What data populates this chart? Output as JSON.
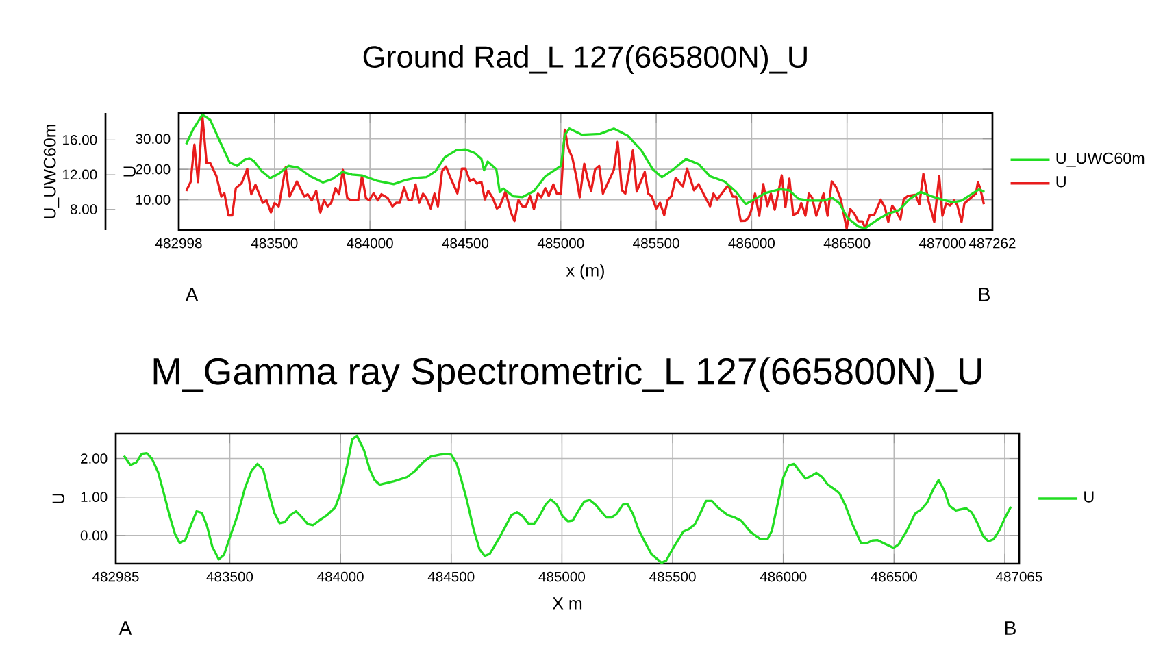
{
  "chart_data": [
    {
      "type": "line",
      "title": "Ground Rad_L 127(665800N)_U",
      "xlabel": "x (m)",
      "ylabel": "U",
      "y2label": "U_UWC60m",
      "xlim": [
        482998,
        487262
      ],
      "xticks": [
        482998,
        483500,
        484000,
        484500,
        485000,
        485500,
        486000,
        486500,
        487000,
        487262
      ],
      "ylim": [
        0,
        38.5
      ],
      "yticks": [
        {
          "value": 10,
          "label": "10.00"
        },
        {
          "value": 20,
          "label": "20.00"
        },
        {
          "value": 30,
          "label": "30.00"
        }
      ],
      "y2lim": [
        5.6,
        19.1
      ],
      "y2ticks": [
        {
          "value": 8,
          "label": "8.00"
        },
        {
          "value": 12,
          "label": "12.00"
        },
        {
          "value": 16,
          "label": "16.00"
        }
      ],
      "grid": true,
      "legend": "right",
      "annotations": [
        "A",
        "B"
      ],
      "series": [
        {
          "name": "U_UWC60m",
          "color": "#22dd22",
          "axis": "y2",
          "x": [
            483037,
            483073,
            483122,
            483163,
            483214,
            483265,
            483304,
            483342,
            483368,
            483394,
            483432,
            483477,
            483522,
            483573,
            483624,
            483688,
            483753,
            483804,
            483855,
            483906,
            483958,
            484035,
            484124,
            484190,
            484237,
            484296,
            484344,
            484392,
            484452,
            484500,
            484548,
            484584,
            484598,
            484617,
            484662,
            484680,
            484698,
            484751,
            484799,
            484859,
            484919,
            484973,
            485001,
            485021,
            485045,
            485111,
            485207,
            485278,
            485350,
            485422,
            485482,
            485530,
            485590,
            485656,
            485722,
            485782,
            485858,
            485919,
            485969,
            486018,
            486075,
            486147,
            486196,
            486246,
            486303,
            486374,
            486424,
            486460,
            486503,
            486559,
            486595,
            486659,
            486716,
            486772,
            486829,
            486886,
            486943,
            487000,
            487057,
            487100,
            487142,
            487192,
            487220
          ],
          "values": [
            15.5,
            17.2,
            18.9,
            18.3,
            15.8,
            13.4,
            13.0,
            13.7,
            13.9,
            13.5,
            12.4,
            11.6,
            12.1,
            13.0,
            12.8,
            11.8,
            11.1,
            11.5,
            12.3,
            12.0,
            11.9,
            11.3,
            10.9,
            11.4,
            11.6,
            11.7,
            12.4,
            14.0,
            14.8,
            14.9,
            14.5,
            13.8,
            12.5,
            13.5,
            12.6,
            10.0,
            10.4,
            9.5,
            9.4,
            10.1,
            11.8,
            12.6,
            13.0,
            16.6,
            17.3,
            16.6,
            16.7,
            17.3,
            16.5,
            14.8,
            12.6,
            11.7,
            12.6,
            13.8,
            13.2,
            11.8,
            11.2,
            10.0,
            8.6,
            9.2,
            9.9,
            10.3,
            10.2,
            9.2,
            9.0,
            9.0,
            9.3,
            8.7,
            7.0,
            6.0,
            5.8,
            6.8,
            7.5,
            7.9,
            9.2,
            10.0,
            9.5,
            9.1,
            8.8,
            9.0,
            9.6,
            10.3,
            10.0
          ]
        },
        {
          "name": "U",
          "color": "#e81c1c",
          "x": [
            483037,
            483060,
            483080,
            483099,
            483122,
            483144,
            483163,
            483195,
            483221,
            483237,
            483259,
            483278,
            483297,
            483327,
            483357,
            483378,
            483400,
            483438,
            483458,
            483481,
            483500,
            483522,
            483558,
            483579,
            483617,
            483656,
            483673,
            483695,
            483718,
            483740,
            483759,
            483778,
            483797,
            483819,
            483838,
            483858,
            483881,
            483900,
            483938,
            483958,
            483979,
            483996,
            484019,
            484041,
            484060,
            484092,
            484118,
            484137,
            484156,
            484179,
            484201,
            484219,
            484239,
            484258,
            484278,
            484296,
            484318,
            484338,
            484356,
            484378,
            484398,
            484422,
            484458,
            484482,
            484500,
            484524,
            484542,
            484560,
            484584,
            484602,
            484620,
            484644,
            484665,
            484680,
            484710,
            484740,
            484757,
            484778,
            484799,
            484817,
            484839,
            484859,
            484880,
            484898,
            484919,
            484937,
            484961,
            484979,
            485001,
            485021,
            485039,
            485060,
            485081,
            485099,
            485123,
            485141,
            485159,
            485180,
            485201,
            485221,
            485278,
            485298,
            485320,
            485338,
            485378,
            485398,
            485440,
            485458,
            485476,
            485500,
            485520,
            485542,
            485560,
            485580,
            485602,
            485626,
            485640,
            485662,
            485698,
            485722,
            485782,
            485800,
            485820,
            485877,
            485901,
            485919,
            485943,
            485967,
            485983,
            485997,
            486018,
            486040,
            486061,
            486083,
            486101,
            486121,
            486158,
            486177,
            486198,
            486218,
            486243,
            486260,
            486282,
            486300,
            486317,
            486339,
            486377,
            486398,
            486420,
            486442,
            486467,
            486498,
            486516,
            486538,
            486559,
            486580,
            486595,
            486619,
            486642,
            486676,
            486698,
            486716,
            486737,
            486755,
            486780,
            486797,
            486818,
            486858,
            486879,
            486900,
            486926,
            486957,
            486983,
            487000,
            487019,
            487040,
            487061,
            487078,
            487100,
            487115,
            487175,
            487186,
            487199,
            487217
          ],
          "values": [
            12.9,
            15.8,
            28.1,
            15.8,
            37.4,
            22.0,
            22.0,
            17.8,
            11.0,
            12.1,
            4.8,
            4.8,
            13.8,
            15.4,
            20.1,
            11.8,
            14.9,
            9.0,
            9.8,
            5.8,
            8.9,
            7.8,
            20.6,
            11.0,
            16.0,
            11.0,
            11.8,
            9.8,
            12.9,
            5.8,
            9.8,
            7.8,
            9.0,
            13.8,
            11.8,
            19.8,
            10.6,
            9.8,
            9.8,
            17.8,
            10.5,
            9.8,
            12.1,
            9.8,
            11.8,
            10.6,
            7.8,
            9.0,
            9.0,
            14.0,
            9.9,
            9.9,
            15.0,
            9.0,
            12.0,
            10.5,
            7.1,
            12.0,
            7.8,
            19.4,
            20.9,
            17.2,
            12.1,
            20.2,
            20.2,
            16.1,
            16.8,
            15.3,
            15.8,
            10.1,
            12.9,
            10.5,
            7.1,
            7.8,
            12.7,
            5.6,
            3.0,
            9.9,
            7.8,
            7.8,
            11.2,
            6.9,
            12.0,
            10.8,
            13.8,
            11.2,
            15.0,
            12.0,
            12.0,
            33.0,
            26.9,
            23.9,
            17.6,
            10.8,
            21.8,
            16.8,
            12.9,
            20.0,
            21.1,
            12.0,
            19.8,
            29.0,
            13.1,
            12.0,
            26.2,
            12.7,
            19.1,
            12.0,
            11.1,
            7.1,
            9.0,
            4.9,
            9.9,
            11.2,
            17.2,
            15.3,
            14.4,
            20.2,
            13.1,
            15.1,
            7.8,
            12.0,
            10.1,
            14.8,
            11.0,
            11.0,
            3.0,
            3.1,
            4.0,
            6.3,
            12.0,
            4.7,
            15.1,
            7.9,
            12.0,
            6.7,
            18.0,
            7.6,
            16.9,
            4.9,
            5.8,
            8.9,
            4.7,
            12.0,
            10.7,
            4.7,
            12.0,
            4.7,
            16.0,
            14.2,
            10.2,
            0.5,
            7.0,
            5.4,
            2.9,
            2.9,
            0.7,
            4.9,
            4.9,
            10.0,
            7.6,
            2.7,
            8.0,
            6.4,
            3.6,
            10.2,
            11.2,
            11.6,
            8.5,
            18.5,
            9.8,
            2.7,
            17.8,
            4.7,
            8.8,
            8.1,
            9.8,
            8.2,
            2.7,
            8.8,
            12.0,
            15.8,
            13.5,
            8.5
          ]
        }
      ]
    },
    {
      "type": "line",
      "title": "M_Gamma ray Spectrometric_L 127(665800N)_U",
      "xlabel": "X m",
      "ylabel": "U",
      "xlim": [
        482985,
        487065
      ],
      "xticks": [
        482985,
        483500,
        484000,
        484500,
        485000,
        485500,
        486000,
        486500,
        {
          "value": 487000,
          "label": null
        },
        487065
      ],
      "ylim": [
        -0.73,
        2.65
      ],
      "yticks": [
        {
          "value": 0,
          "label": "0.00"
        },
        {
          "value": 1,
          "label": "1.00"
        },
        {
          "value": 2,
          "label": "2.00"
        }
      ],
      "grid": true,
      "legend": "right",
      "annotations": [
        "A",
        "B"
      ],
      "series": [
        {
          "name": "U",
          "color": "#22dd22",
          "x": [
            483022,
            483051,
            483078,
            483102,
            483125,
            483149,
            483176,
            483202,
            483226,
            483252,
            483273,
            483299,
            483326,
            483350,
            483374,
            483397,
            483421,
            483450,
            483474,
            483500,
            483533,
            483569,
            483598,
            483625,
            483651,
            483677,
            483701,
            483725,
            483748,
            483775,
            483799,
            483823,
            483852,
            483876,
            483911,
            483941,
            483976,
            484000,
            484030,
            484053,
            484074,
            484106,
            484130,
            484154,
            484177,
            484242,
            484301,
            484337,
            484378,
            484408,
            484449,
            484479,
            484500,
            484525,
            484546,
            484571,
            484602,
            484628,
            484651,
            484674,
            484720,
            484772,
            484797,
            484823,
            484849,
            484875,
            484895,
            484926,
            484949,
            484977,
            485003,
            485027,
            485049,
            485075,
            485101,
            485126,
            485152,
            485178,
            485201,
            485224,
            485247,
            485275,
            485296,
            485321,
            485347,
            485373,
            485404,
            485450,
            485471,
            485502,
            485548,
            485574,
            485600,
            485626,
            485651,
            485677,
            485708,
            485749,
            485780,
            485811,
            485852,
            485893,
            485929,
            485948,
            485969,
            486000,
            486024,
            486048,
            486100,
            486124,
            486149,
            486175,
            486201,
            486227,
            486253,
            486279,
            486314,
            486351,
            486376,
            486402,
            486426,
            486454,
            486498,
            486521,
            486557,
            486595,
            486624,
            486650,
            486676,
            486701,
            486727,
            486750,
            486779,
            486825,
            486851,
            486876,
            486902,
            486926,
            486949,
            486974,
            487000,
            487028
          ],
          "values": [
            2.07,
            1.83,
            1.9,
            2.12,
            2.14,
            1.99,
            1.65,
            1.1,
            0.56,
            0.05,
            -0.19,
            -0.12,
            0.29,
            0.63,
            0.59,
            0.25,
            -0.29,
            -0.62,
            -0.5,
            -0.05,
            0.49,
            1.24,
            1.68,
            1.86,
            1.71,
            1.1,
            0.59,
            0.32,
            0.35,
            0.54,
            0.63,
            0.49,
            0.3,
            0.27,
            0.42,
            0.54,
            0.73,
            1.1,
            1.82,
            2.5,
            2.59,
            2.22,
            1.75,
            1.44,
            1.32,
            1.41,
            1.52,
            1.68,
            1.93,
            2.05,
            2.1,
            2.12,
            2.1,
            1.86,
            1.44,
            0.91,
            0.14,
            -0.36,
            -0.53,
            -0.48,
            -0.03,
            0.53,
            0.61,
            0.5,
            0.31,
            0.31,
            0.47,
            0.8,
            0.94,
            0.8,
            0.5,
            0.37,
            0.39,
            0.65,
            0.88,
            0.92,
            0.8,
            0.62,
            0.47,
            0.47,
            0.56,
            0.8,
            0.82,
            0.56,
            0.14,
            -0.15,
            -0.48,
            -0.71,
            -0.65,
            -0.33,
            0.1,
            0.17,
            0.29,
            0.59,
            0.9,
            0.9,
            0.71,
            0.53,
            0.47,
            0.38,
            0.09,
            -0.08,
            -0.09,
            0.12,
            0.68,
            1.51,
            1.82,
            1.86,
            1.48,
            1.54,
            1.63,
            1.52,
            1.32,
            1.22,
            1.1,
            0.8,
            0.27,
            -0.2,
            -0.2,
            -0.13,
            -0.12,
            -0.2,
            -0.32,
            -0.23,
            0.12,
            0.57,
            0.68,
            0.86,
            1.19,
            1.44,
            1.17,
            0.77,
            0.65,
            0.71,
            0.6,
            0.33,
            -0.01,
            -0.15,
            -0.1,
            0.12,
            0.45,
            0.75
          ]
        }
      ]
    }
  ]
}
